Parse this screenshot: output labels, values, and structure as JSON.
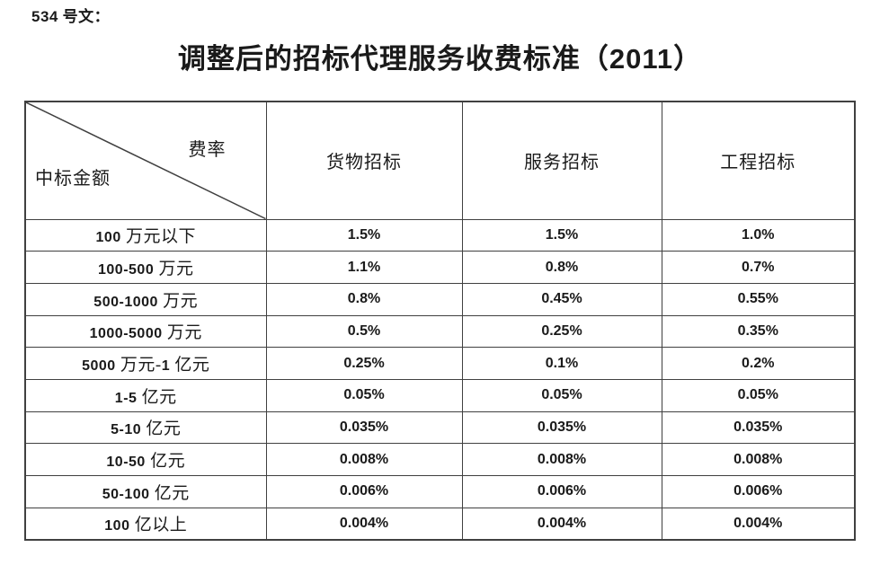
{
  "style": {
    "background": "#ffffff",
    "text_color": "#1a1a1a",
    "border_color": "#404040"
  },
  "doc": {
    "ref_label": "534 号文：",
    "title": "调整后的招标代理服务收费标准（2011）"
  },
  "table": {
    "corner": {
      "top_right": "费率",
      "bottom_left": "中标金额"
    },
    "columns": [
      "货物招标",
      "服务招标",
      "工程招标"
    ],
    "rows": [
      {
        "amount": "100 万元以下",
        "goods": "1.5%",
        "service": "1.5%",
        "engineering": "1.0%"
      },
      {
        "amount": "100-500 万元",
        "goods": "1.1%",
        "service": "0.8%",
        "engineering": "0.7%"
      },
      {
        "amount": "500-1000 万元",
        "goods": "0.8%",
        "service": "0.45%",
        "engineering": "0.55%"
      },
      {
        "amount": "1000-5000 万元",
        "goods": "0.5%",
        "service": "0.25%",
        "engineering": "0.35%"
      },
      {
        "amount": "5000 万元-1 亿元",
        "goods": "0.25%",
        "service": "0.1%",
        "engineering": "0.2%"
      },
      {
        "amount": "1-5 亿元",
        "goods": "0.05%",
        "service": "0.05%",
        "engineering": "0.05%"
      },
      {
        "amount": "5-10 亿元",
        "goods": "0.035%",
        "service": "0.035%",
        "engineering": "0.035%"
      },
      {
        "amount": "10-50 亿元",
        "goods": "0.008%",
        "service": "0.008%",
        "engineering": "0.008%"
      },
      {
        "amount": "50-100 亿元",
        "goods": "0.006%",
        "service": "0.006%",
        "engineering": "0.006%"
      },
      {
        "amount": "100 亿以上",
        "goods": "0.004%",
        "service": "0.004%",
        "engineering": "0.004%"
      }
    ]
  }
}
